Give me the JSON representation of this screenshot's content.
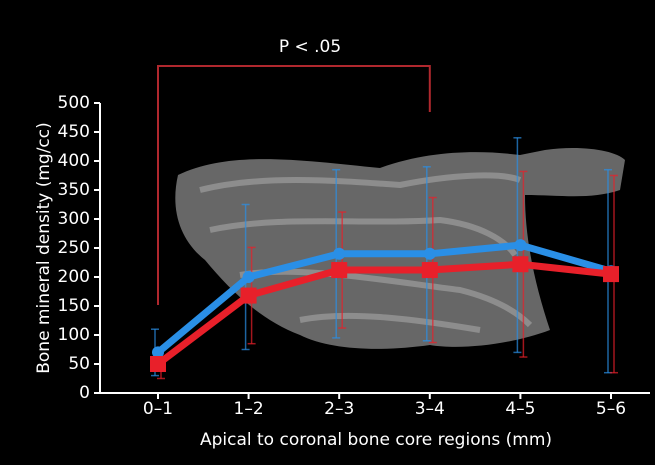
{
  "chart_data": {
    "type": "line",
    "annotation": "P < .05",
    "x_label": "Apical to coronal bone core regions (mm)",
    "y_label": "Bone mineral density (mg/cc)",
    "categories": [
      "0–1",
      "1–2",
      "2–3",
      "3–4",
      "4–5",
      "5–6"
    ],
    "series": [
      {
        "color": "#2a8fe6",
        "marker": "circle",
        "values": [
          70,
          200,
          240,
          240,
          255,
          210
        ],
        "errors": [
          40,
          125,
          145,
          150,
          185,
          175
        ]
      },
      {
        "color": "#e8202a",
        "marker": "square",
        "values": [
          50,
          168,
          212,
          212,
          222,
          205
        ],
        "errors": [
          25,
          83,
          100,
          125,
          160,
          170
        ]
      }
    ],
    "ylim": [
      0,
      500
    ],
    "yticks": [
      0,
      50,
      100,
      150,
      200,
      250,
      300,
      350,
      400,
      450,
      500
    ]
  }
}
